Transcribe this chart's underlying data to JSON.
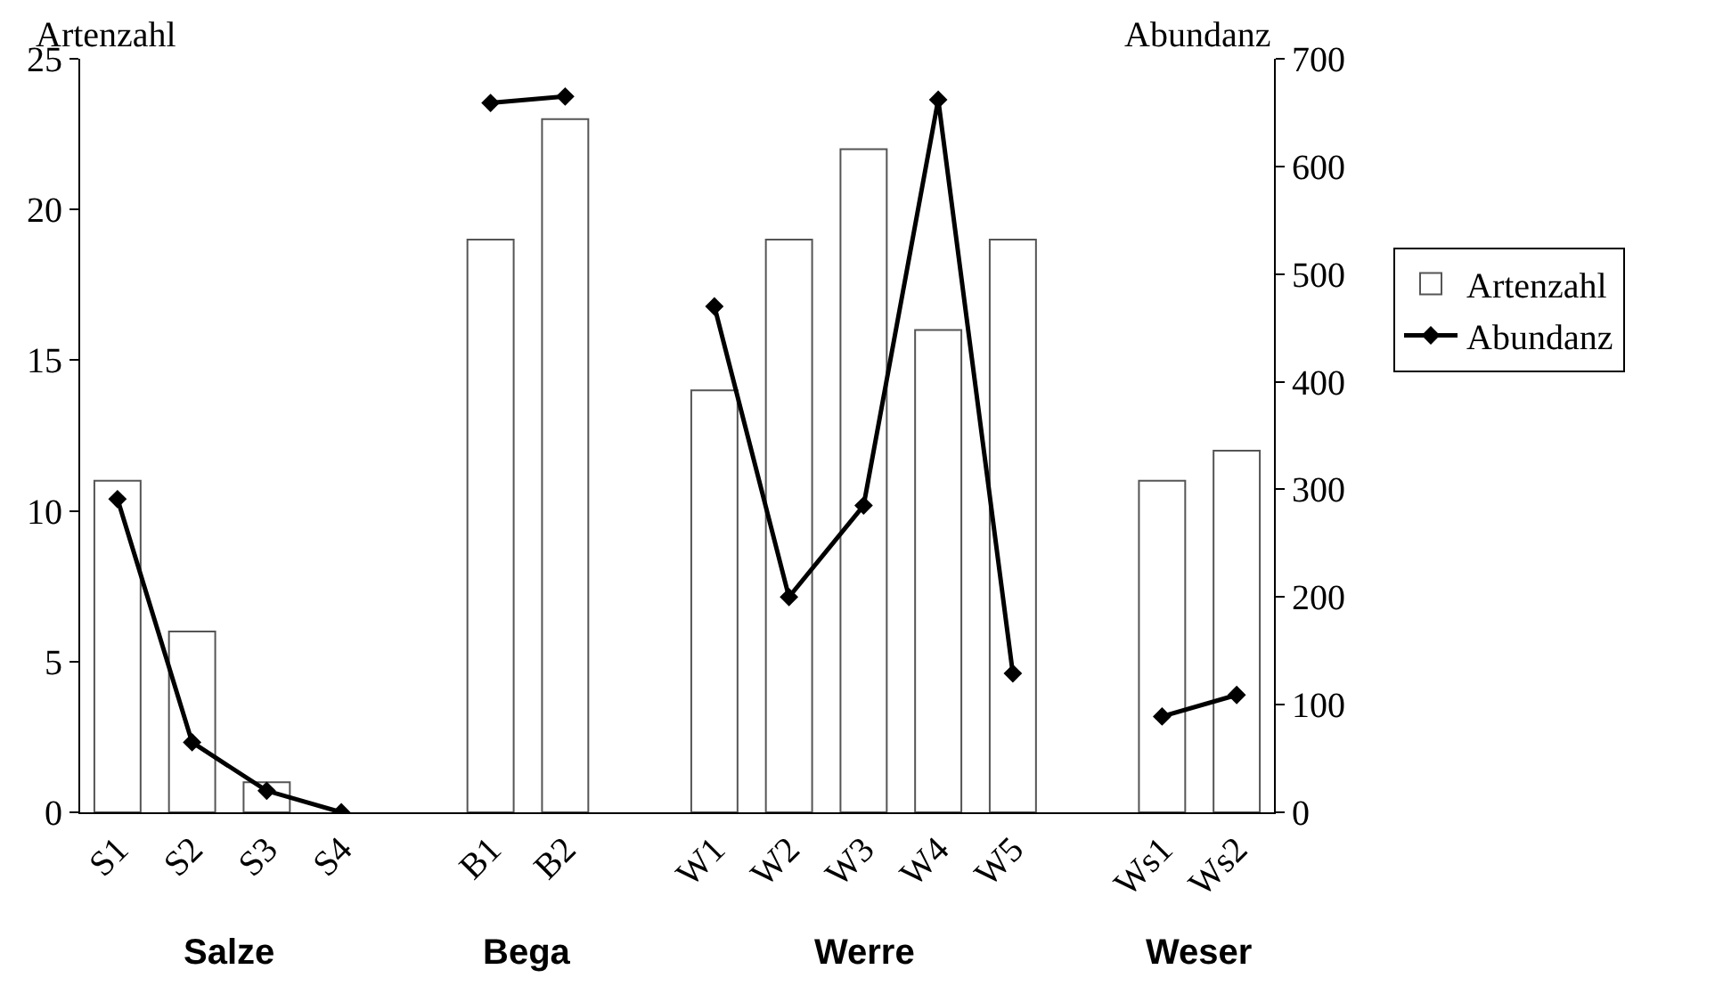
{
  "chart_data": {
    "type": "bar",
    "ylabel": "Artenzahl",
    "y2label": "Abundanz",
    "categories": [
      "S1",
      "S2",
      "S3",
      "S4",
      null,
      "B1",
      "B2",
      null,
      "W1",
      "W2",
      "W3",
      "W4",
      "W5",
      null,
      "Ws1",
      "Ws2"
    ],
    "series": [
      {
        "name": "Artenzahl",
        "color": "#ffffff",
        "values": [
          11,
          6,
          1,
          0,
          null,
          19,
          23,
          null,
          14,
          19,
          22,
          16,
          19,
          null,
          11,
          12
        ]
      },
      {
        "name": "Abundanz",
        "type": "line",
        "axis": "y2",
        "color": "#000000",
        "values": [
          291,
          65,
          20,
          0,
          null,
          659,
          665,
          null,
          470,
          200,
          285,
          662,
          129,
          null,
          89,
          109
        ]
      }
    ],
    "ylim": [
      0,
      25
    ],
    "yticks": [
      0,
      5,
      10,
      15,
      20,
      25
    ],
    "y2lim": [
      0,
      700
    ],
    "y2ticks": [
      0,
      100,
      200,
      300,
      400,
      500,
      600,
      700
    ],
    "annotations": [
      "Salze",
      "Bega",
      "Werre",
      "Weser"
    ],
    "marker": "diamond",
    "line_style": "solid",
    "legend": "right"
  }
}
